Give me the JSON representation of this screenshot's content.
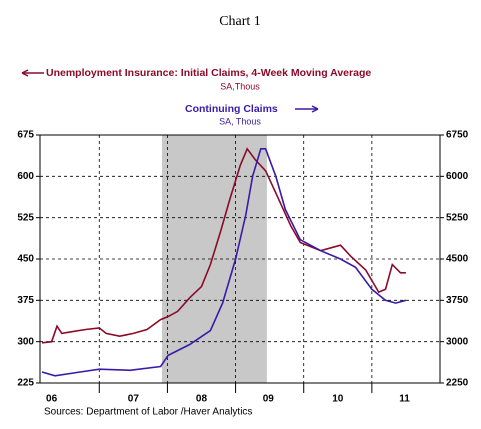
{
  "chart_data": {
    "type": "line",
    "title": "Chart 1",
    "legend_note_left": "SA,Thous",
    "legend_note_right": "SA, Thous",
    "source": "Sources:  Department of Labor /Haver Analytics",
    "xlim": [
      2006.13,
      2012.0
    ],
    "xticks": [
      {
        "value": 2006.3,
        "label": "06"
      },
      {
        "value": 2007.5,
        "label": "07"
      },
      {
        "value": 2008.5,
        "label": "08"
      },
      {
        "value": 2009.48,
        "label": "09"
      },
      {
        "value": 2010.5,
        "label": "10"
      },
      {
        "value": 2011.48,
        "label": "11"
      }
    ],
    "xgrid": [
      2007,
      2008,
      2009,
      2010,
      2011
    ],
    "shaded": [
      2007.92,
      2009.46
    ],
    "ylim": [
      225,
      675
    ],
    "yticks": [
      225,
      300,
      375,
      450,
      525,
      600,
      675
    ],
    "y2lim": [
      2250,
      6750
    ],
    "y2ticks": [
      2250,
      3000,
      3750,
      4500,
      5250,
      6000,
      6750
    ],
    "grid": true,
    "series": [
      {
        "name": "Unemployment Insurance: Initial Claims, 4-Week Moving Average",
        "color": "#8b0a2a",
        "x": [
          2006.16,
          2006.3,
          2006.38,
          2006.45,
          2006.6,
          2006.8,
          2007.0,
          2007.1,
          2007.3,
          2007.5,
          2007.7,
          2007.9,
          2008.0,
          2008.15,
          2008.33,
          2008.5,
          2008.63,
          2008.78,
          2008.92,
          2009.07,
          2009.17,
          2009.29,
          2009.44,
          2009.59,
          2009.81,
          2009.95,
          2010.25,
          2010.54,
          2010.69,
          2010.91,
          2011.1,
          2011.2,
          2011.3,
          2011.42,
          2011.5
        ],
        "values": [
          298,
          300,
          328,
          315,
          318,
          322,
          325,
          315,
          310,
          315,
          322,
          340,
          345,
          355,
          380,
          400,
          440,
          500,
          560,
          620,
          650,
          630,
          610,
          570,
          510,
          480,
          465,
          475,
          455,
          430,
          390,
          395,
          440,
          425,
          425
        ]
      },
      {
        "name": "Continuing Claims",
        "color": "#3a1aa8",
        "axis": "y2",
        "x": [
          2006.16,
          2006.35,
          2006.72,
          2007.0,
          2007.45,
          2007.9,
          2008.01,
          2008.33,
          2008.63,
          2008.81,
          2009.0,
          2009.15,
          2009.25,
          2009.37,
          2009.44,
          2009.59,
          2009.73,
          2009.95,
          2010.25,
          2010.54,
          2010.76,
          2011.0,
          2011.2,
          2011.35,
          2011.5
        ],
        "values": [
          2450,
          2380,
          2450,
          2500,
          2480,
          2550,
          2750,
          2950,
          3200,
          3700,
          4500,
          5300,
          6000,
          6500,
          6500,
          6000,
          5400,
          4850,
          4650,
          4500,
          4350,
          3950,
          3750,
          3700,
          3750
        ]
      }
    ]
  }
}
